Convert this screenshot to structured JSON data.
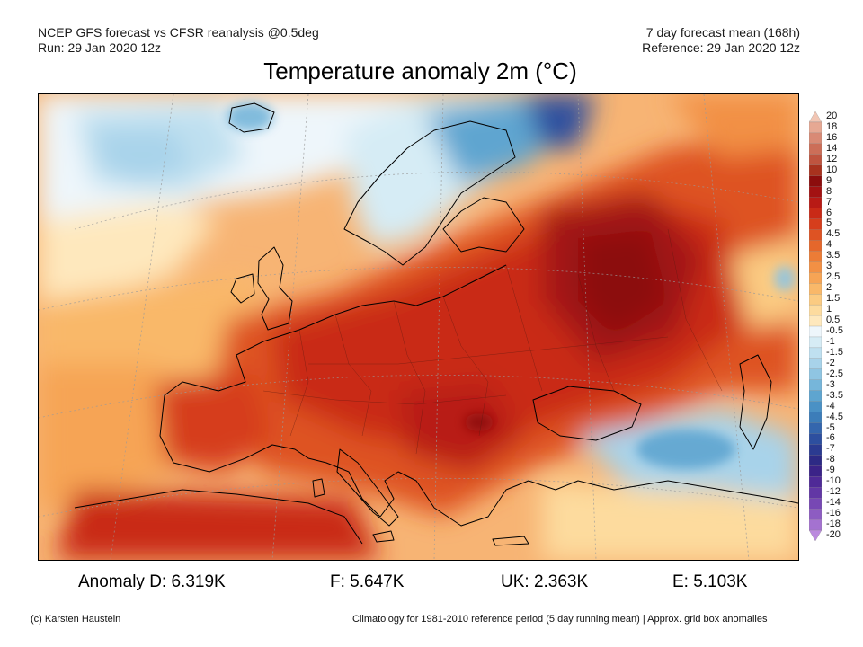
{
  "header": {
    "model_line": "NCEP GFS forecast vs CFSR reanalysis @0.5deg",
    "run_line": "Run: 29 Jan 2020 12z",
    "period_line": "7 day forecast mean (168h)",
    "reference_line": "Reference: 29 Jan 2020 12z"
  },
  "title": "Temperature anomaly 2m (°C)",
  "colorbar": {
    "labels": [
      "20",
      "18",
      "16",
      "14",
      "12",
      "10",
      "9",
      "8",
      "7",
      "6",
      "5",
      "4.5",
      "4",
      "3.5",
      "3",
      "2.5",
      "2",
      "1.5",
      "1",
      "0.5",
      "-0.5",
      "-1",
      "-1.5",
      "-2",
      "-2.5",
      "-3",
      "-3.5",
      "-4",
      "-4.5",
      "-5",
      "-6",
      "-7",
      "-8",
      "-9",
      "-10",
      "-12",
      "-14",
      "-16",
      "-18",
      "-20"
    ],
    "colors": [
      "#f2c6b4",
      "#e6a893",
      "#d98a75",
      "#cc6e58",
      "#bf543f",
      "#a8321e",
      "#8c0d0d",
      "#a31212",
      "#b81a15",
      "#c92a17",
      "#d63e1c",
      "#de5323",
      "#e5672b",
      "#ec7c36",
      "#f29044",
      "#f6a455",
      "#f9b869",
      "#fbcb82",
      "#fddb9e",
      "#fee8bd",
      "#eef6fb",
      "#d6ecf5",
      "#bfe0f0",
      "#a8d3ea",
      "#8fc5e2",
      "#76b6da",
      "#5ea5d0",
      "#4a91c5",
      "#3c7db9",
      "#3466ad",
      "#2d4f9f",
      "#2b3b91",
      "#2d2a85",
      "#3b2388",
      "#4f2a97",
      "#6237a5",
      "#7748b4",
      "#8d5cc2",
      "#a472d0",
      "#bb8ade"
    ]
  },
  "stats": {
    "d": "Anomaly D: 6.319K",
    "f": "F: 5.647K",
    "uk": "UK: 2.363K",
    "e": "E: 5.103K"
  },
  "footer": {
    "credit": "(c) Karsten Haustein",
    "note": "Climatology for 1981-2010 reference period (5 day running mean) | Approx. grid box anomalies"
  }
}
